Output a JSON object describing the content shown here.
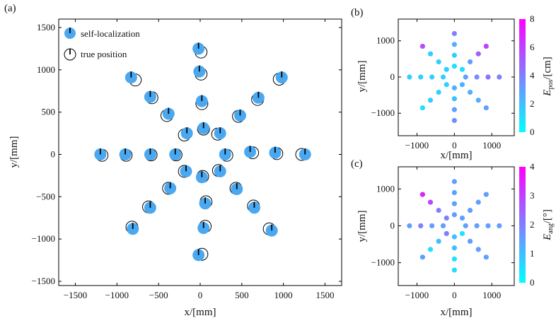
{
  "panel_labels": {
    "a": "(a)",
    "b": "(b)",
    "c": "(c)"
  },
  "colors": {
    "self_marker": "#4aa8f0",
    "cmap_low": "#00ffff",
    "cmap_high": "#ff00ff"
  },
  "chart_data": [
    {
      "type": "scatter",
      "panel": "(a)",
      "xlabel": "x/[mm]",
      "ylabel": "y/[mm]",
      "xlim": [
        -1700,
        1700
      ],
      "ylim": [
        -1550,
        1600
      ],
      "xticks": [
        -1500,
        -1000,
        -500,
        0,
        500,
        1000,
        1500
      ],
      "yticks": [
        -1500,
        -1000,
        -500,
        0,
        500,
        1000,
        1500
      ],
      "legend": {
        "placement": "top-left",
        "self_label": "self-localization",
        "true_label": "true position"
      },
      "series": [
        {
          "name": "self-localization",
          "points": [
            [
              -1200,
              0
            ],
            [
              -900,
              0
            ],
            [
              -600,
              0
            ],
            [
              -300,
              0
            ],
            [
              300,
              0
            ],
            [
              600,
              30
            ],
            [
              900,
              20
            ],
            [
              1260,
              0
            ],
            [
              -20,
              1250
            ],
            [
              -10,
              980
            ],
            [
              20,
              630
            ],
            [
              40,
              310
            ],
            [
              20,
              -270
            ],
            [
              60,
              -580
            ],
            [
              40,
              -870
            ],
            [
              -20,
              -1190
            ],
            [
              -830,
              910
            ],
            [
              -600,
              680
            ],
            [
              -380,
              480
            ],
            [
              -160,
              250
            ],
            [
              240,
              250
            ],
            [
              480,
              460
            ],
            [
              700,
              670
            ],
            [
              980,
              910
            ],
            [
              -170,
              -200
            ],
            [
              -360,
              -400
            ],
            [
              -600,
              -630
            ],
            [
              -810,
              -880
            ],
            [
              240,
              -200
            ],
            [
              440,
              -410
            ],
            [
              650,
              -630
            ],
            [
              860,
              -900
            ]
          ],
          "headings": [
            0,
            0,
            0,
            0,
            0,
            0,
            0,
            0,
            0,
            0,
            0,
            0,
            0,
            0,
            0,
            0,
            0,
            0,
            0,
            0,
            0,
            0,
            0,
            0,
            0,
            0,
            0,
            0,
            0,
            0,
            0,
            0
          ]
        },
        {
          "name": "true position",
          "points": [
            [
              -1180,
              -10
            ],
            [
              -890,
              -10
            ],
            [
              -590,
              -5
            ],
            [
              -290,
              -5
            ],
            [
              320,
              -10
            ],
            [
              630,
              20
            ],
            [
              920,
              10
            ],
            [
              1220,
              0
            ],
            [
              10,
              1210
            ],
            [
              10,
              950
            ],
            [
              20,
              600
            ],
            [
              40,
              300
            ],
            [
              30,
              -260
            ],
            [
              70,
              -560
            ],
            [
              60,
              -850
            ],
            [
              20,
              -1180
            ],
            [
              -780,
              880
            ],
            [
              -580,
              670
            ],
            [
              -400,
              460
            ],
            [
              -190,
              230
            ],
            [
              210,
              240
            ],
            [
              460,
              450
            ],
            [
              690,
              650
            ],
            [
              950,
              890
            ],
            [
              -190,
              -200
            ],
            [
              -380,
              -400
            ],
            [
              -620,
              -620
            ],
            [
              -820,
              -860
            ],
            [
              220,
              -190
            ],
            [
              430,
              -400
            ],
            [
              640,
              -610
            ],
            [
              830,
              -880
            ]
          ]
        }
      ]
    },
    {
      "type": "scatter",
      "panel": "(b)",
      "xlabel": "x/[mm]",
      "ylabel": "y/[mm]",
      "xlim": [
        -1500,
        1600
      ],
      "ylim": [
        -1620,
        1600
      ],
      "xticks": [
        -1000,
        0,
        1000
      ],
      "yticks": [
        -1000,
        0,
        1000
      ],
      "colorbar": {
        "label_main": "E",
        "label_sub": "pos",
        "label_unit": "/[cm]",
        "min": 0,
        "max": 8,
        "ticks": [
          0,
          2,
          4,
          6,
          8
        ]
      },
      "points": [
        {
          "x": -1200,
          "y": 0,
          "v": 1.5
        },
        {
          "x": -900,
          "y": 0,
          "v": 1.5
        },
        {
          "x": -600,
          "y": 0,
          "v": 1.5
        },
        {
          "x": -300,
          "y": 0,
          "v": 1.5
        },
        {
          "x": 300,
          "y": 0,
          "v": 3.0
        },
        {
          "x": 600,
          "y": 0,
          "v": 3.5
        },
        {
          "x": 900,
          "y": 0,
          "v": 4.5
        },
        {
          "x": 1200,
          "y": 0,
          "v": 4.0
        },
        {
          "x": 0,
          "y": 1200,
          "v": 4.0
        },
        {
          "x": 0,
          "y": 900,
          "v": 2.5
        },
        {
          "x": 0,
          "y": 600,
          "v": 1.5
        },
        {
          "x": 0,
          "y": 300,
          "v": 1.0
        },
        {
          "x": 0,
          "y": -300,
          "v": 2.5
        },
        {
          "x": 0,
          "y": -600,
          "v": 2.0
        },
        {
          "x": 0,
          "y": -900,
          "v": 3.0
        },
        {
          "x": 0,
          "y": -1200,
          "v": 3.5
        },
        {
          "x": -850,
          "y": 850,
          "v": 5.5
        },
        {
          "x": -640,
          "y": 640,
          "v": 1.5
        },
        {
          "x": -420,
          "y": 420,
          "v": 1.5
        },
        {
          "x": -210,
          "y": 210,
          "v": 1.5
        },
        {
          "x": 210,
          "y": 210,
          "v": 1.0
        },
        {
          "x": 420,
          "y": 420,
          "v": 3.0
        },
        {
          "x": 640,
          "y": 640,
          "v": 5.0
        },
        {
          "x": 850,
          "y": 850,
          "v": 6.0
        },
        {
          "x": -210,
          "y": -210,
          "v": 1.5
        },
        {
          "x": -420,
          "y": -420,
          "v": 1.5
        },
        {
          "x": -640,
          "y": -640,
          "v": 1.5
        },
        {
          "x": -850,
          "y": -850,
          "v": 1.0
        },
        {
          "x": 210,
          "y": -210,
          "v": 2.5
        },
        {
          "x": 420,
          "y": -420,
          "v": 2.5
        },
        {
          "x": 640,
          "y": -640,
          "v": 2.5
        },
        {
          "x": 850,
          "y": -850,
          "v": 3.0
        }
      ]
    },
    {
      "type": "scatter",
      "panel": "(c)",
      "xlabel": "x/[mm]",
      "ylabel": "y/[mm]",
      "xlim": [
        -1500,
        1600
      ],
      "ylim": [
        -1620,
        1600
      ],
      "xticks": [
        -1000,
        0,
        1000
      ],
      "yticks": [
        -1000,
        0,
        1000
      ],
      "colorbar": {
        "label_main": "E",
        "label_sub": "ang",
        "label_unit": "/[°]",
        "min": 0,
        "max": 4,
        "ticks": [
          0,
          1,
          2,
          3,
          4
        ]
      },
      "points": [
        {
          "x": -1200,
          "y": 0,
          "v": 1.5
        },
        {
          "x": -900,
          "y": 0,
          "v": 2.0
        },
        {
          "x": -600,
          "y": 0,
          "v": 1.5
        },
        {
          "x": -300,
          "y": 0,
          "v": 1.5
        },
        {
          "x": 300,
          "y": 0,
          "v": 1.5
        },
        {
          "x": 600,
          "y": 0,
          "v": 1.5
        },
        {
          "x": 900,
          "y": 0,
          "v": 1.5
        },
        {
          "x": 1200,
          "y": 0,
          "v": 1.5
        },
        {
          "x": 0,
          "y": 1200,
          "v": 1.5
        },
        {
          "x": 0,
          "y": 900,
          "v": 1.5
        },
        {
          "x": 0,
          "y": 600,
          "v": 1.5
        },
        {
          "x": 0,
          "y": 300,
          "v": 1.5
        },
        {
          "x": 0,
          "y": -300,
          "v": 1.0
        },
        {
          "x": 0,
          "y": -600,
          "v": 1.0
        },
        {
          "x": 0,
          "y": -900,
          "v": 0.5
        },
        {
          "x": 0,
          "y": -1200,
          "v": 0.5
        },
        {
          "x": -850,
          "y": 850,
          "v": 3.5
        },
        {
          "x": -640,
          "y": 640,
          "v": 3.0
        },
        {
          "x": -420,
          "y": 420,
          "v": 2.0
        },
        {
          "x": -210,
          "y": 210,
          "v": 2.0
        },
        {
          "x": 210,
          "y": 210,
          "v": 1.5
        },
        {
          "x": 420,
          "y": 420,
          "v": 1.5
        },
        {
          "x": 640,
          "y": 640,
          "v": 1.5
        },
        {
          "x": 850,
          "y": 850,
          "v": 1.5
        },
        {
          "x": -210,
          "y": -210,
          "v": 2.0
        },
        {
          "x": -420,
          "y": -420,
          "v": 1.0
        },
        {
          "x": -640,
          "y": -640,
          "v": 0.5
        },
        {
          "x": -850,
          "y": -850,
          "v": 1.5
        },
        {
          "x": 210,
          "y": -210,
          "v": 0.5
        },
        {
          "x": 420,
          "y": -420,
          "v": 1.5
        },
        {
          "x": 640,
          "y": -640,
          "v": 1.5
        },
        {
          "x": 850,
          "y": -850,
          "v": 1.5
        }
      ]
    }
  ]
}
